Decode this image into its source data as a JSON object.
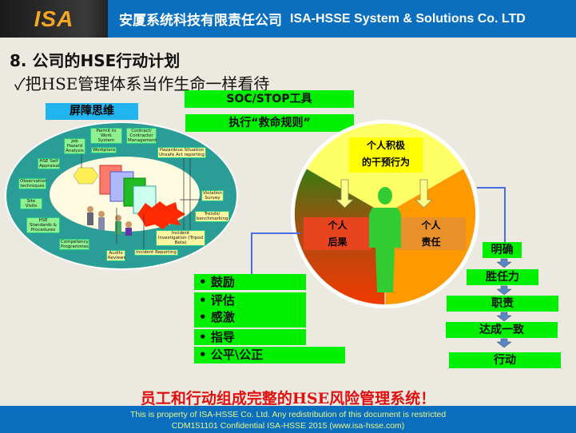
{
  "header": {
    "logo": "ISA",
    "company_cn": "安厦系统科技有限责任公司",
    "company_en": "ISA-HSSE  System & Solutions Co. LTD"
  },
  "title": "8.  公司的HSE行动计划",
  "subtitle": "✓把HSE管理体系当作生命一样看待",
  "green_boxes": {
    "soc": "SOC/STOP工具",
    "rules": "执行“救命规则”"
  },
  "barrier": {
    "heading": "屏障思维",
    "labels": [
      "Job Hazard Analysis",
      "Permit to Work System",
      "Contract/ Contractor Management",
      "Workplans",
      "HSE Self Appraisal",
      "Hazardous Situation Unsafe Act reporting",
      "Observation techniques",
      "Site Visits",
      "HSE Standards & Procedures",
      "Violation Survey",
      "Trends/ benchmarking",
      "Incident Investigation (Tripod Beta)",
      "Competency Programmes",
      "Incident Reporting",
      "Audits Reviews"
    ]
  },
  "wheel": {
    "top": [
      "个人积极",
      "的干预行为"
    ],
    "left": [
      "个人",
      "后果"
    ],
    "right": [
      "个人",
      "责任"
    ],
    "colors": {
      "top": "#ffff66",
      "left_top": "#3a7a10",
      "left_bottom": "#f03a00",
      "right": "#ff9900",
      "figure": "#33cc33"
    }
  },
  "bullets": [
    "鼓励",
    "评估",
    "感激",
    "指导",
    "公平\\公正"
  ],
  "chain": [
    "明确",
    "胜任力",
    "职责",
    "达成一致",
    "行动"
  ],
  "bottom_message": "员工和行动组成完整的HSE风险管理系统！",
  "footer": {
    "line1": "This is property of ISA-HSSE Co. Ltd. Any redistribution of this document is restricted",
    "line2": "CDM151101 Confidential   ISA-HSSE 2015  (www.isa-hsse.com)"
  }
}
